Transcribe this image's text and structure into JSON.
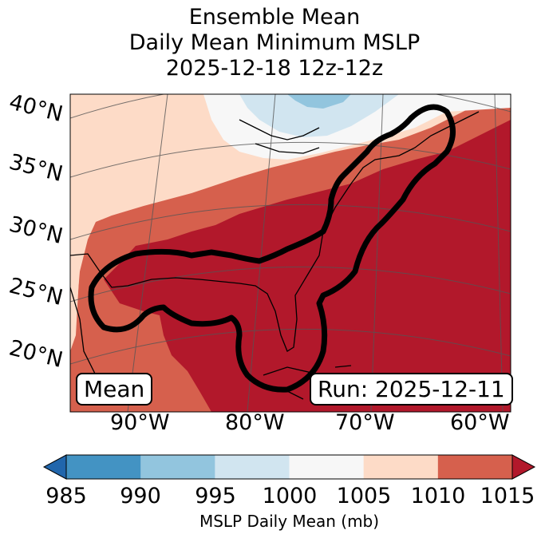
{
  "title": {
    "line1": "Ensemble Mean",
    "line2": "Daily Mean Minimum MSLP",
    "line3": "2025-12-18 12z-12z"
  },
  "latitude_labels": [
    "40°N",
    "35°N",
    "30°N",
    "25°N",
    "20°N"
  ],
  "longitude_labels": [
    "90°W",
    "80°W",
    "70°W",
    "60°W"
  ],
  "annotations": {
    "left_box": "Mean",
    "right_box": "Run: 2025-12-11"
  },
  "colorbar": {
    "label": "MSLP Daily Mean (mb)",
    "ticks": [
      "985",
      "990",
      "995",
      "1000",
      "1005",
      "1010",
      "1015"
    ],
    "colors": [
      "#2166ac",
      "#4393c3",
      "#92c5de",
      "#d1e5f0",
      "#f7f7f7",
      "#fddbc7",
      "#d6604d",
      "#b2182b"
    ],
    "extend": "both"
  },
  "colors": {
    "above_1015": "#b2182b",
    "1010_1015": "#d6604d",
    "1005_1010": "#fddbc7",
    "1000_1005": "#f7f7f7",
    "995_1000": "#d1e5f0",
    "990_995": "#92c5de",
    "outline": "#000000"
  }
}
